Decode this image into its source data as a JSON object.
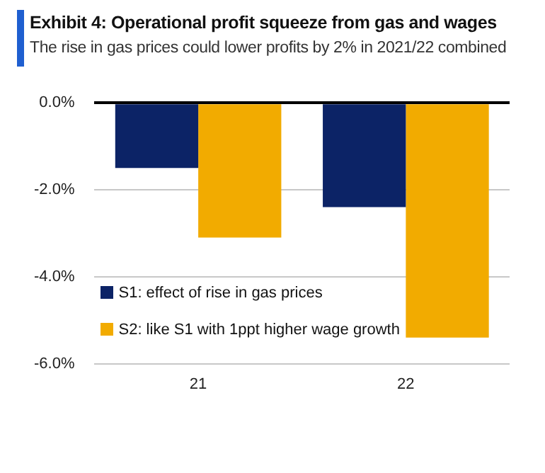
{
  "chart_data": {
    "type": "bar",
    "title": "Exhibit 4: Operational profit squeeze from gas and wages",
    "subtitle": "The rise in gas prices could lower profits by 2% in 2021/22 combined",
    "categories": [
      "21",
      "22"
    ],
    "series": [
      {
        "name": "S1: effect of rise in gas prices",
        "color": "#0c2366",
        "values": [
          -1.5,
          -2.4
        ]
      },
      {
        "name": "S2: like S1 with 1ppt higher wage growth",
        "color": "#f2ab00",
        "values": [
          -3.1,
          -5.4
        ]
      }
    ],
    "ylim": [
      -6,
      0
    ],
    "yticks": [
      {
        "value": -6,
        "label": "-6.0%"
      },
      {
        "value": -4,
        "label": "-4.0%"
      },
      {
        "value": -2,
        "label": "-2.0%"
      },
      {
        "value": 0,
        "label": "0.0%"
      }
    ],
    "grid": "y",
    "legend": "bottom left"
  }
}
